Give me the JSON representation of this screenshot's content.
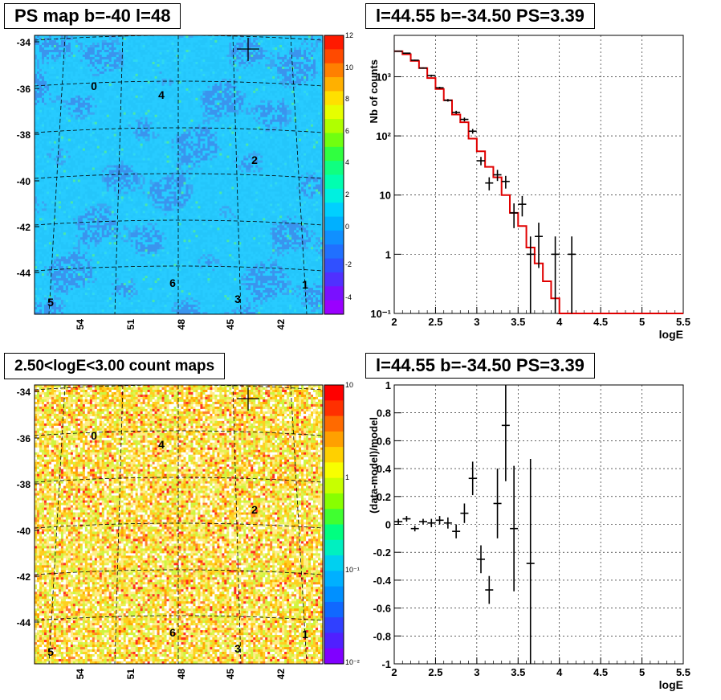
{
  "panels": {
    "ps_map": {
      "title": "PS map b=-40 l=48",
      "ylabels": [
        "-34",
        "-36",
        "-38",
        "-40",
        "-42",
        "-44"
      ],
      "xlabels": [
        "54",
        "51",
        "48",
        "45",
        "42"
      ],
      "colorbar": [
        "12",
        "10",
        "8",
        "6",
        "4",
        "2",
        "0",
        "-2",
        "-4"
      ],
      "source_labels": [
        "0",
        "4",
        "2",
        "6",
        "1",
        "3",
        "5"
      ]
    },
    "spectrum": {
      "title": "l=44.55 b=-34.50 PS=3.39",
      "ylabel": "Nb of counts",
      "xlabel": "logE",
      "yticks": [
        "10³",
        "10²",
        "10",
        "1",
        "10⁻¹"
      ]
    },
    "count_map": {
      "title": "2.50<logE<3.00 count maps",
      "ylabels": [
        "-34",
        "-36",
        "-38",
        "-40",
        "-42",
        "-44"
      ],
      "xlabels": [
        "54",
        "51",
        "48",
        "45",
        "42"
      ],
      "colorbar": [
        "10",
        "1",
        "10⁻¹",
        "10⁻²"
      ],
      "source_labels": [
        "0",
        "4",
        "2",
        "6",
        "1",
        "3",
        "5"
      ]
    },
    "residual": {
      "title": "l=44.55 b=-34.50 PS=3.39",
      "ylabel": "(data-model)/model",
      "xlabel": "logE"
    }
  },
  "chart_data": [
    {
      "type": "heatmap",
      "title": "PS map b=-40 l=48",
      "xlabel": "",
      "ylabel": "",
      "x_ticks": [
        54,
        51,
        48,
        45,
        42
      ],
      "y_ticks": [
        -34,
        -36,
        -38,
        -40,
        -42,
        -44
      ],
      "zlim": [
        -5,
        12
      ],
      "sources": [
        {
          "label": "0",
          "lon": 53.0,
          "lat": -35.8
        },
        {
          "label": "4",
          "lon": 49.0,
          "lat": -36.1
        },
        {
          "label": "2",
          "lon": 44.6,
          "lat": -39.6
        },
        {
          "label": "6",
          "lon": 47.7,
          "lat": -44.8
        },
        {
          "label": "1",
          "lon": 40.7,
          "lat": -44.9
        },
        {
          "label": "3",
          "lon": 45.2,
          "lat": -45.5
        },
        {
          "label": "5",
          "lon": 56.0,
          "lat": -45.7
        }
      ]
    },
    {
      "type": "line",
      "title": "l=44.55 b=-34.50 PS=3.39",
      "xlabel": "logE",
      "ylabel": "Nb of counts",
      "xlim": [
        2,
        5.5
      ],
      "ylim": [
        0.1,
        5000
      ],
      "y_log": true,
      "grid": true,
      "x": [
        2.05,
        2.15,
        2.25,
        2.35,
        2.45,
        2.55,
        2.65,
        2.75,
        2.85,
        2.95,
        3.05,
        3.15,
        3.25,
        3.35,
        3.45,
        3.55,
        3.65,
        3.75,
        3.85,
        3.95,
        4.05,
        4.15
      ],
      "series": [
        {
          "name": "data",
          "values": [
            2700,
            2500,
            1900,
            1400,
            1050,
            650,
            400,
            250,
            190,
            120,
            38,
            16,
            22,
            17,
            5,
            7,
            1,
            2,
            0,
            1,
            0,
            1
          ]
        },
        {
          "name": "model",
          "values": [
            2700,
            2400,
            1850,
            1400,
            950,
            620,
            400,
            230,
            170,
            90,
            55,
            30,
            20,
            10,
            5,
            3,
            1.3,
            0.7,
            0.35,
            0.18,
            0.1,
            0.1
          ]
        }
      ]
    },
    {
      "type": "heatmap",
      "title": "2.50<logE<3.00 count maps",
      "x_ticks": [
        54,
        51,
        48,
        45,
        42
      ],
      "y_ticks": [
        -34,
        -36,
        -38,
        -40,
        -42,
        -44
      ],
      "z_log": true,
      "zlim": [
        0.01,
        10
      ]
    },
    {
      "type": "scatter",
      "title": "l=44.55 b=-34.50 PS=3.39",
      "xlabel": "logE",
      "ylabel": "(data-model)/model",
      "xlim": [
        2,
        5.5
      ],
      "ylim": [
        -1,
        1
      ],
      "grid": true,
      "x": [
        2.05,
        2.15,
        2.25,
        2.35,
        2.45,
        2.55,
        2.65,
        2.75,
        2.85,
        2.95,
        3.05,
        3.15,
        3.25,
        3.35,
        3.45,
        3.65
      ],
      "series": [
        {
          "name": "residual",
          "values": [
            0.02,
            0.04,
            -0.03,
            0.02,
            0.01,
            0.03,
            0.01,
            -0.05,
            0.08,
            0.33,
            -0.25,
            -0.47,
            0.15,
            0.71,
            -0.03,
            -0.28
          ],
          "errors": [
            0.02,
            0.02,
            0.02,
            0.02,
            0.03,
            0.03,
            0.04,
            0.05,
            0.07,
            0.12,
            0.1,
            0.1,
            0.25,
            0.4,
            0.45,
            0.75
          ]
        }
      ]
    }
  ]
}
